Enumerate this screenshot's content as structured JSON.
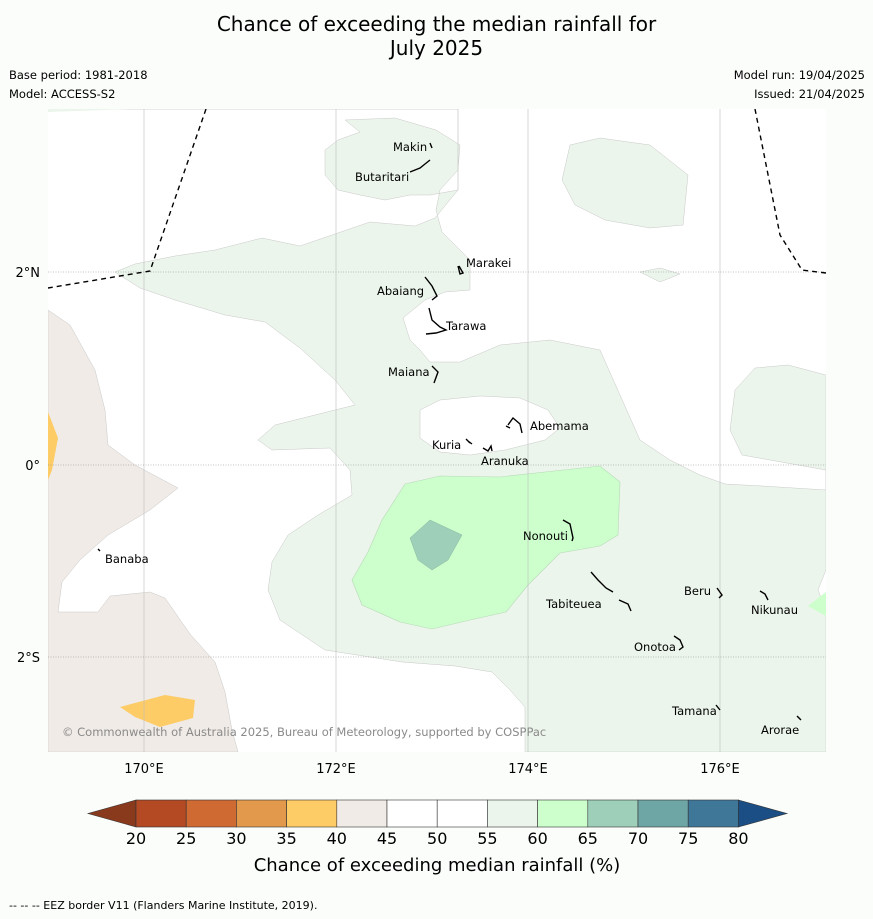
{
  "title": {
    "line1": "Chance of exceeding the median rainfall for",
    "line2": "July 2025"
  },
  "meta": {
    "base_period": "Base period: 1981-2018",
    "model": "Model: ACCESS-S2",
    "model_run": "Model run: 19/04/2025",
    "issued": "Issued: 21/04/2025"
  },
  "map": {
    "lat_labels": [
      "2°N",
      "0°",
      "2°S"
    ],
    "lon_labels": [
      "170°E",
      "172°E",
      "174°E",
      "176°E"
    ],
    "places": [
      "Makin",
      "Butaritari",
      "Marakei",
      "Abaiang",
      "Tarawa",
      "Maiana",
      "Abemama",
      "Kuria",
      "Aranuka",
      "Nonouti",
      "Banaba",
      "Beru",
      "Nikunau",
      "Tabiteuea",
      "Onotoa",
      "Tamana",
      "Arorae"
    ],
    "copyright": "© Commonwealth of Australia 2025, Bureau of Meteorology, supported by COSPPac"
  },
  "legend": {
    "ticks": [
      "20",
      "25",
      "30",
      "35",
      "40",
      "45",
      "50",
      "55",
      "60",
      "65",
      "70",
      "75",
      "80"
    ],
    "label": "Chance of exceeding median rainfall (%)",
    "colors": {
      "below_20": "#8a3a1c",
      "c20_25": "#b34a24",
      "c25_30": "#cf6a33",
      "c30_35": "#e3994c",
      "c35_40": "#fdcc66",
      "c40_45": "#f0ebe6",
      "c45_50": "#ffffff",
      "c50_55": "#ffffff",
      "c55_60": "#ebf5eb",
      "c60_65": "#ccffcc",
      "c65_70": "#9ed0b9",
      "c70_75": "#6ea6a6",
      "c75_80": "#3f7799",
      "above_80": "#1b4e84"
    }
  },
  "footnote": "--  --  -- EEZ border V11 (Flanders Marine Institute, 2019)."
}
